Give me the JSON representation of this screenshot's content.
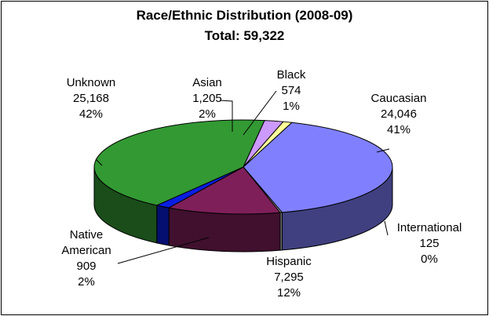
{
  "chart_data": {
    "type": "pie",
    "title": "Race/Ethnic Distribution (2008-09)",
    "subtitle": "Total: 59,322",
    "slices": [
      {
        "name": "Caucasian",
        "value": 24046,
        "value_label": "24,046",
        "percent_label": "41%",
        "color": "#8080ff",
        "side_color": "#404080"
      },
      {
        "name": "International",
        "value": 125,
        "value_label": "125",
        "percent_label": "0%",
        "color": "#b0b0b0",
        "side_color": "#7a7a7a"
      },
      {
        "name": "Hispanic",
        "value": 7295,
        "value_label": "7,295",
        "percent_label": "12%",
        "color": "#7f1f5a",
        "side_color": "#40102e"
      },
      {
        "name": "Native American",
        "label_lines": [
          "Native",
          "American"
        ],
        "value": 909,
        "value_label": "909",
        "percent_label": "2%",
        "color": "#0a1ee0",
        "side_color": "#050f70"
      },
      {
        "name": "Unknown",
        "value": 25168,
        "value_label": "25,168",
        "percent_label": "42%",
        "color": "#339933",
        "side_color": "#1a4d1a"
      },
      {
        "name": "Asian",
        "value": 1205,
        "value_label": "1,205",
        "percent_label": "2%",
        "color": "#cc99ff",
        "side_color": "#664d80"
      },
      {
        "name": "Black",
        "value": 574,
        "value_label": "574",
        "percent_label": "1%",
        "color": "#ffff99",
        "side_color": "#80804d"
      }
    ]
  }
}
